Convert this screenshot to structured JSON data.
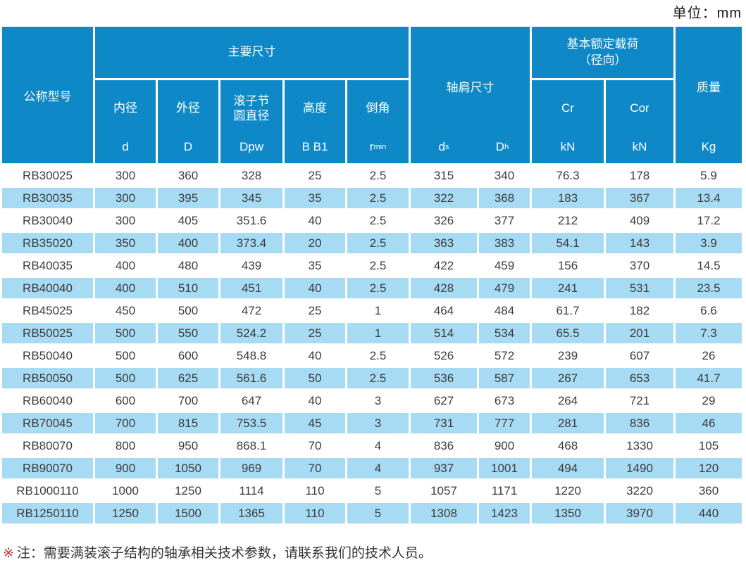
{
  "unit_label": "单位：mm",
  "colors": {
    "header_blue": "#0f88c7",
    "row_alt_blue": "#a7daf3",
    "note_mark_red": "#cc2b29"
  },
  "header": {
    "model_col": "公称型号",
    "main_dims": {
      "title": "主要尺寸",
      "columns": [
        {
          "label_line1": "内径",
          "label_line2": "",
          "sym": "d",
          "sym_sub": ""
        },
        {
          "label_line1": "外径",
          "label_line2": "",
          "sym": "D",
          "sym_sub": ""
        },
        {
          "label_line1": "滚子节",
          "label_line2": "圆直径",
          "sym": "Dpw",
          "sym_sub": ""
        },
        {
          "label_line1": "高度",
          "label_line2": "",
          "sym": "B B1",
          "sym_sub": ""
        },
        {
          "label_line1": "倒角",
          "label_line2": "",
          "sym": "r",
          "sym_sub": "min"
        }
      ]
    },
    "shoulder": {
      "title": "轴肩尺寸",
      "sym_left_main": "d",
      "sym_left_sub": "s",
      "sym_right_main": "D",
      "sym_right_sub": "h"
    },
    "load": {
      "title_line1": "基本额定载荷",
      "title_line2": "（径向）",
      "columns": [
        {
          "label": "Cr",
          "unit": "kN"
        },
        {
          "label": "Cor",
          "unit": "kN"
        }
      ]
    },
    "mass": {
      "title": "质量",
      "unit": "Kg"
    }
  },
  "rows": [
    [
      "RB30025",
      "300",
      "360",
      "328",
      "25",
      "2.5",
      "315",
      "340",
      "76.3",
      "178",
      "5.9"
    ],
    [
      "RB30035",
      "300",
      "395",
      "345",
      "35",
      "2.5",
      "322",
      "368",
      "183",
      "367",
      "13.4"
    ],
    [
      "RB30040",
      "300",
      "405",
      "351.6",
      "40",
      "2.5",
      "326",
      "377",
      "212",
      "409",
      "17.2"
    ],
    [
      "RB35020",
      "350",
      "400",
      "373.4",
      "20",
      "2.5",
      "363",
      "383",
      "54.1",
      "143",
      "3.9"
    ],
    [
      "RB40035",
      "400",
      "480",
      "439",
      "35",
      "2.5",
      "422",
      "459",
      "156",
      "370",
      "14.5"
    ],
    [
      "RB40040",
      "400",
      "510",
      "451",
      "40",
      "2.5",
      "428",
      "479",
      "241",
      "531",
      "23.5"
    ],
    [
      "RB45025",
      "450",
      "500",
      "472",
      "25",
      "1",
      "464",
      "484",
      "61.7",
      "182",
      "6.6"
    ],
    [
      "RB50025",
      "500",
      "550",
      "524.2",
      "25",
      "1",
      "514",
      "534",
      "65.5",
      "201",
      "7.3"
    ],
    [
      "RB50040",
      "500",
      "600",
      "548.8",
      "40",
      "2.5",
      "526",
      "572",
      "239",
      "607",
      "26"
    ],
    [
      "RB50050",
      "500",
      "625",
      "561.6",
      "50",
      "2.5",
      "536",
      "587",
      "267",
      "653",
      "41.7"
    ],
    [
      "RB60040",
      "600",
      "700",
      "647",
      "40",
      "3",
      "627",
      "673",
      "264",
      "721",
      "29"
    ],
    [
      "RB70045",
      "700",
      "815",
      "753.5",
      "45",
      "3",
      "731",
      "777",
      "281",
      "836",
      "46"
    ],
    [
      "RB80070",
      "800",
      "950",
      "868.1",
      "70",
      "4",
      "836",
      "900",
      "468",
      "1330",
      "105"
    ],
    [
      "RB90070",
      "900",
      "1050",
      "969",
      "70",
      "4",
      "937",
      "1001",
      "494",
      "1490",
      "120"
    ],
    [
      "RB1000110",
      "1000",
      "1250",
      "1114",
      "110",
      "5",
      "1057",
      "1171",
      "1220",
      "3220",
      "360"
    ],
    [
      "RB1250110",
      "1250",
      "1500",
      "1365",
      "110",
      "5",
      "1308",
      "1423",
      "1350",
      "3970",
      "440"
    ]
  ],
  "note": {
    "mark": "※",
    "text": "注：需要满装滚子结构的轴承相关技术参数，请联系我们的技术人员。"
  }
}
